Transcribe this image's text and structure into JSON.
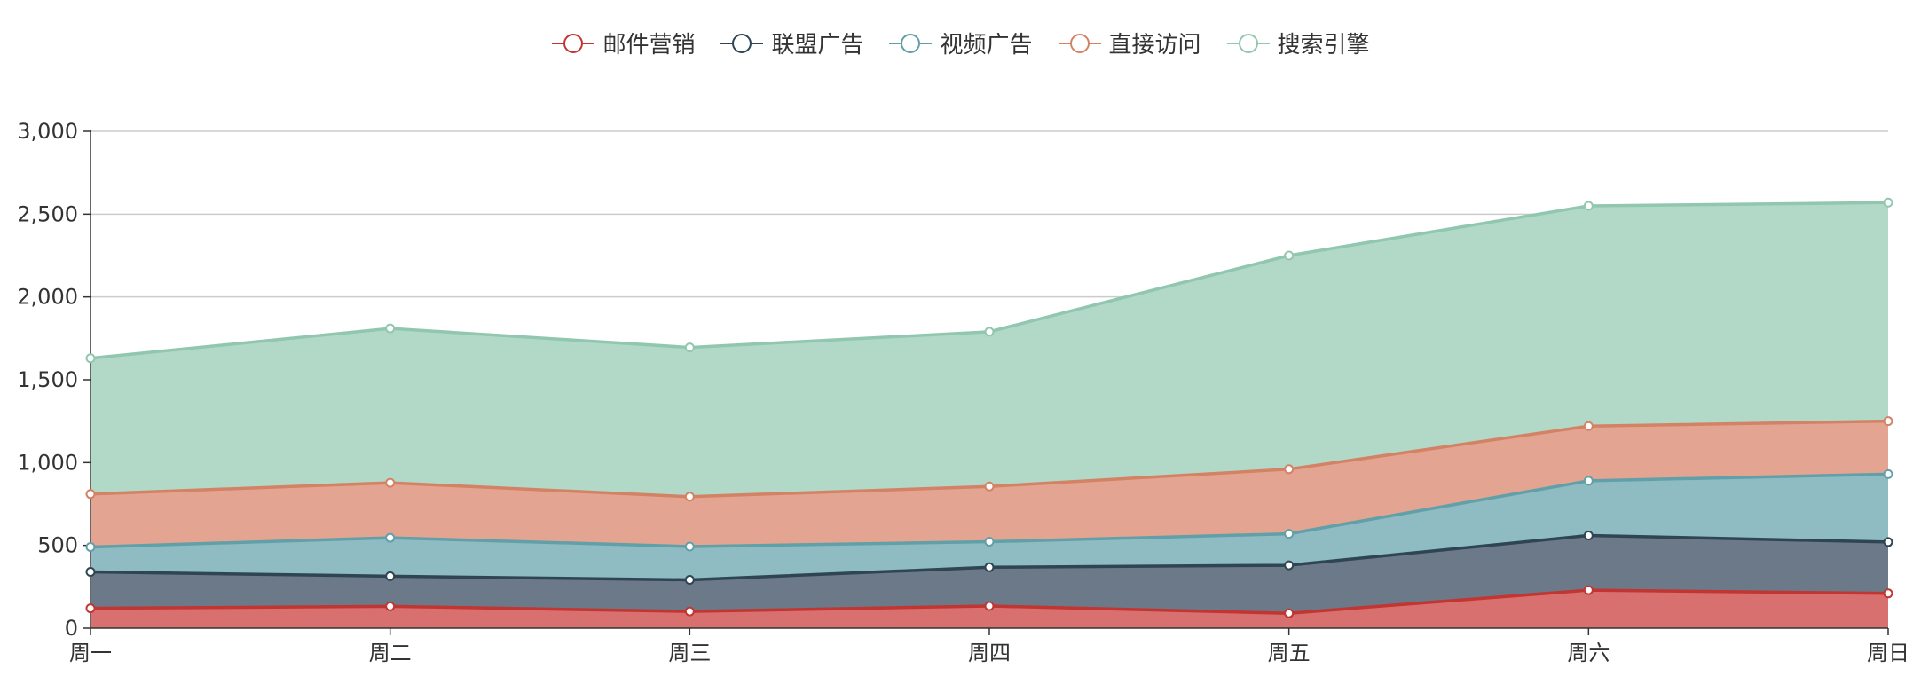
{
  "chart_data": {
    "type": "area",
    "stacked": true,
    "categories": [
      "周一",
      "周二",
      "周三",
      "周四",
      "周五",
      "周六",
      "周日"
    ],
    "ylim": [
      0,
      3000
    ],
    "yticks": [
      0,
      500,
      1000,
      1500,
      2000,
      2500,
      3000
    ],
    "ytick_labels": [
      "0",
      "500",
      "1,000",
      "1,500",
      "2,000",
      "2,500",
      "3,000"
    ],
    "grid": true,
    "legend_position": "top-center",
    "series": [
      {
        "name": "邮件营销",
        "color": "#c23531",
        "area_color": "#d87070",
        "values": [
          120,
          132,
          101,
          134,
          90,
          230,
          210
        ]
      },
      {
        "name": "联盟广告",
        "color": "#2f4554",
        "area_color": "#6b7989",
        "values": [
          220,
          182,
          191,
          234,
          290,
          330,
          310
        ]
      },
      {
        "name": "视频广告",
        "color": "#61a0a8",
        "area_color": "#8fbbc2",
        "values": [
          150,
          232,
          201,
          154,
          190,
          330,
          410
        ]
      },
      {
        "name": "直接访问",
        "color": "#d48265",
        "area_color": "#e3a591",
        "values": [
          320,
          332,
          301,
          334,
          390,
          330,
          320
        ]
      },
      {
        "name": "搜索引擎",
        "color": "#91c7ae",
        "area_color": "#b2d9c7",
        "values": [
          820,
          932,
          901,
          934,
          1290,
          1330,
          1320
        ]
      }
    ]
  }
}
